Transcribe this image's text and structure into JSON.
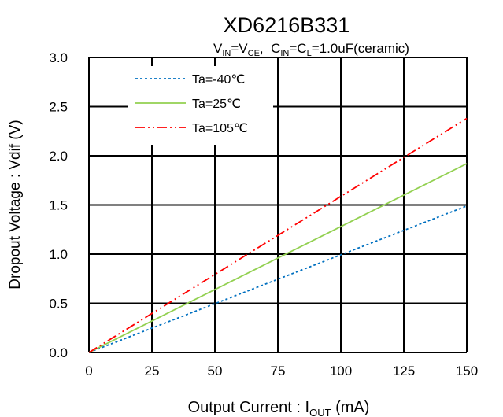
{
  "chart_data": {
    "type": "line",
    "title": "XD6216B331",
    "subtitle": {
      "vin_main": "V",
      "vin_sub": "IN",
      "eq1": "=V",
      "vce_sub": "CE",
      "sep": ",  C",
      "cin_sub": "IN",
      "eq2": "=C",
      "cl_sub": "L",
      "tail": "=1.0uF(ceramic)"
    },
    "xlabel": {
      "main": "Output Current : I",
      "sub": "OUT",
      "unit": " (mA)"
    },
    "ylabel": "Dropout Voltage : Vdif (V)",
    "xlim": [
      0,
      150
    ],
    "ylim": [
      0,
      3.0
    ],
    "x_ticks": [
      0,
      25,
      50,
      75,
      100,
      125,
      150
    ],
    "y_ticks": [
      "0.0",
      "0.5",
      "1.0",
      "1.5",
      "2.0",
      "2.5",
      "3.0"
    ],
    "grid": true,
    "legend_position": "top-left",
    "series": [
      {
        "name": "Ta=-40℃",
        "color": "#0070c0",
        "style": "dotted",
        "x": [
          0,
          150
        ],
        "y": [
          0,
          1.49
        ]
      },
      {
        "name": "Ta=25℃",
        "color": "#92d050",
        "style": "solid",
        "x": [
          0,
          150
        ],
        "y": [
          0,
          1.92
        ]
      },
      {
        "name": "Ta=105℃",
        "color": "#ff0000",
        "style": "dash-dot-dot",
        "x": [
          0,
          150
        ],
        "y": [
          0,
          2.38
        ]
      }
    ]
  }
}
